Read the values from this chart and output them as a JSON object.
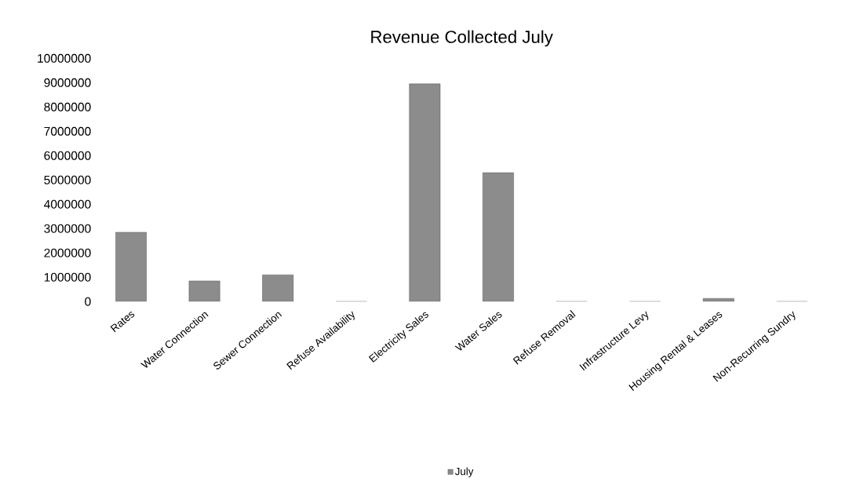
{
  "chart_data": {
    "type": "bar",
    "title": "Revenue Collected July",
    "categories": [
      "Rates",
      "Water Connection",
      "Sewer Connection",
      "Refuse Availability",
      "Electricity Sales",
      "Water Sales",
      "Refuse Removal",
      "Infrastructure Levy",
      "Housing Rental & Leases",
      "Non-Recurring Sundry"
    ],
    "series": [
      {
        "name": "July",
        "color": "#8c8c8c",
        "values": [
          2850000,
          850000,
          1100000,
          0,
          8950000,
          5300000,
          0,
          0,
          130000,
          0
        ]
      }
    ],
    "ylim": [
      0,
      10000000
    ],
    "yticks": [
      0,
      1000000,
      2000000,
      3000000,
      4000000,
      5000000,
      6000000,
      7000000,
      8000000,
      9000000,
      10000000
    ],
    "legend": "bottom"
  }
}
